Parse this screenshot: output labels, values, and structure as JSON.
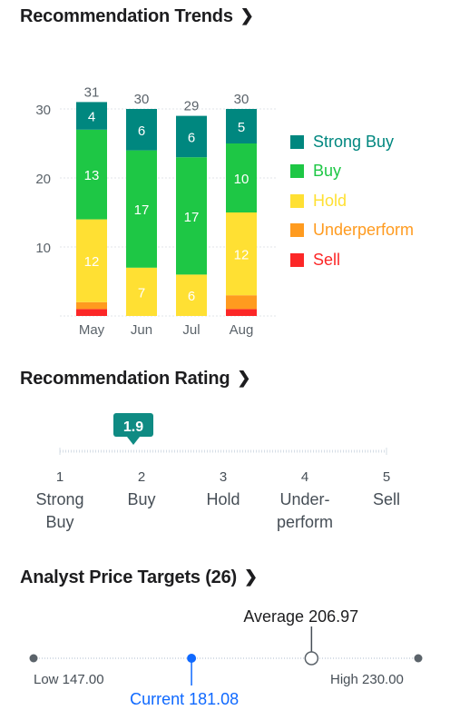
{
  "sections": {
    "trends_title": "Recommendation Trends",
    "rating_title": "Recommendation Rating",
    "targets_title": "Analyst Price Targets (26)"
  },
  "colors": {
    "strong_buy": "#00877f",
    "buy": "#1ec745",
    "hold": "#ffe033",
    "underperform": "#ff9b1f",
    "sell": "#fc2727",
    "accent": "#0f69ff",
    "rating_badge": "#0f8b83"
  },
  "chart_data": {
    "type": "bar",
    "stacked": true,
    "categories": [
      "May",
      "Jun",
      "Jul",
      "Aug"
    ],
    "totals": [
      "31",
      "30",
      "29",
      "30"
    ],
    "ylim": [
      0,
      33
    ],
    "yticks": [
      10,
      20,
      30
    ],
    "grid": true,
    "legend_position": "right",
    "series": [
      {
        "name": "Sell",
        "key": "sell",
        "values": [
          1,
          0,
          0,
          1
        ]
      },
      {
        "name": "Underperform",
        "key": "underperform",
        "values": [
          1,
          0,
          0,
          2
        ]
      },
      {
        "name": "Hold",
        "key": "hold",
        "values": [
          12,
          7,
          6,
          12
        ]
      },
      {
        "name": "Buy",
        "key": "buy",
        "values": [
          13,
          17,
          17,
          10
        ]
      },
      {
        "name": "Strong Buy",
        "key": "strong_buy",
        "values": [
          4,
          6,
          6,
          5
        ]
      }
    ],
    "labeled_series": [
      "hold",
      "buy",
      "strong_buy"
    ]
  },
  "legend": [
    {
      "label": "Strong Buy",
      "key": "strong_buy"
    },
    {
      "label": "Buy",
      "key": "buy"
    },
    {
      "label": "Hold",
      "key": "hold"
    },
    {
      "label": "Underperform",
      "key": "underperform"
    },
    {
      "label": "Sell",
      "key": "sell"
    }
  ],
  "rating": {
    "value": 1.9,
    "value_label": "1.9",
    "scale": [
      {
        "num": "1",
        "text": [
          "Strong",
          "Buy"
        ]
      },
      {
        "num": "2",
        "text": [
          "Buy"
        ]
      },
      {
        "num": "3",
        "text": [
          "Hold"
        ]
      },
      {
        "num": "4",
        "text": [
          "Under-",
          "perform"
        ]
      },
      {
        "num": "5",
        "text": [
          "Sell"
        ]
      }
    ]
  },
  "price_targets": {
    "low": 147.0,
    "high": 230.0,
    "current": 181.08,
    "average": 206.97,
    "low_label": "Low 147.00",
    "high_label": "High 230.00",
    "current_label": "Current 181.08",
    "average_label": "Average 206.97"
  }
}
